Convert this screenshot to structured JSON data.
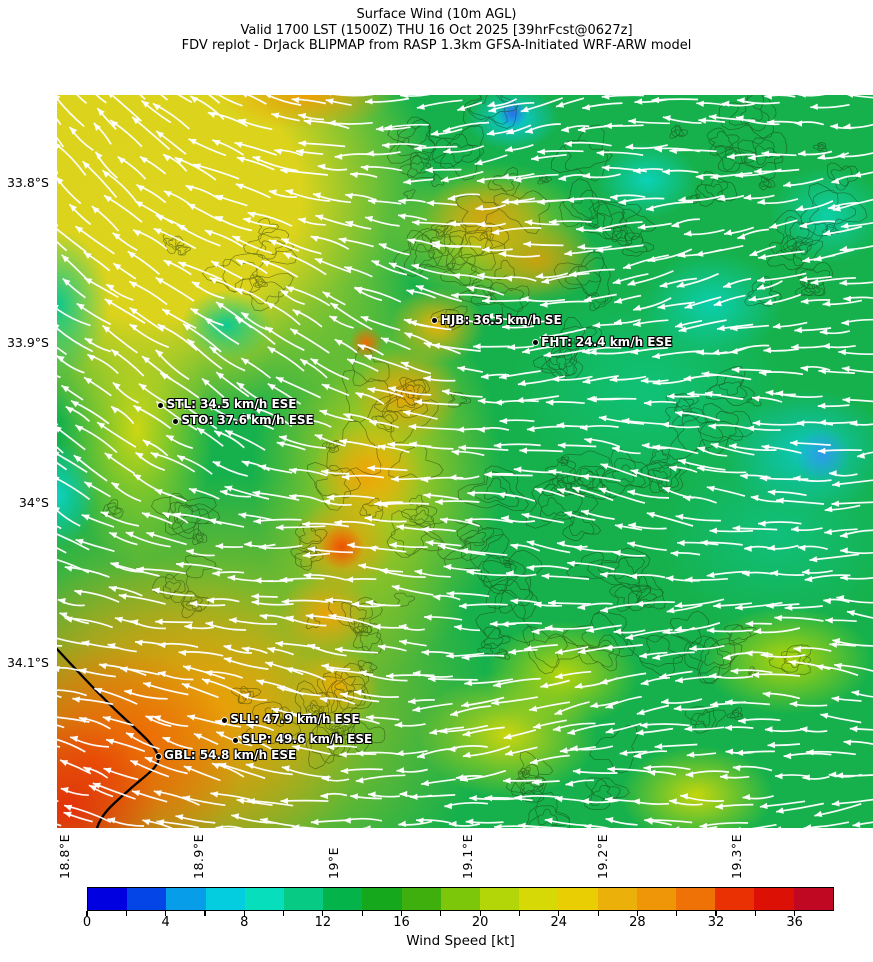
{
  "header": {
    "title": "Surface Wind (10m AGL)",
    "valid_line": "Valid 1700 LST (1500Z) THU 16 Oct 2025 [39hrFcst@0627z]",
    "source_line": "FDV replot - DrJack BLIPMAP from RASP 1.3km GFSA-Initiated WRF-ARW model"
  },
  "chart_data": {
    "type": "heatmap",
    "title": "Surface Wind (10m AGL)",
    "subtitle": "Valid 1700 LST (1500Z) THU 16 Oct 2025 [39hrFcst@0627z]",
    "source": "FDV replot - DrJack BLIPMAP from RASP 1.3km GFSA-Initiated WRF-ARW model",
    "field_description": "10m AGL wind speed shading with white surface-wind streamline arrows, terrain contour lines and a coastline in the lower-left",
    "x_axis": {
      "ticks": [
        "18.8°E",
        "18.9°E",
        "19°E",
        "19.1°E",
        "19.2°E",
        "19.3°E"
      ]
    },
    "y_axis": {
      "ticks": [
        "33.8°S",
        "33.9°S",
        "34°S",
        "34.1°S"
      ]
    },
    "colorbar": {
      "label": "Wind Speed [kt]",
      "range_kt": [
        0,
        38
      ],
      "major_ticks": [
        0,
        4,
        8,
        12,
        16,
        20,
        24,
        28,
        32,
        36
      ],
      "minor_tick_step": 2,
      "segment_step_kt": 2,
      "segment_colors": [
        "#0000e0",
        "#0345e6",
        "#089de8",
        "#04cde0",
        "#06debc",
        "#07ca84",
        "#04b44a",
        "#16a81c",
        "#3faf0e",
        "#7dc70a",
        "#b3d609",
        "#d6d905",
        "#e9ce03",
        "#ebb00a",
        "#ee9607",
        "#ee7206",
        "#e93104",
        "#dd1005",
        "#c10823"
      ]
    },
    "stations": [
      {
        "code": "HJB",
        "label": "HJB: 36.5 km/h SE",
        "speed_km_h": 36.5,
        "wind_dir": "SE",
        "x_pct": 46.3,
        "y_pct": 30.8
      },
      {
        "code": "FHT",
        "label": "FHT: 24.4 km/h ESE",
        "speed_km_h": 24.4,
        "wind_dir": "ESE",
        "x_pct": 58.6,
        "y_pct": 33.8
      },
      {
        "code": "STL",
        "label": "STL: 34.5 km/h ESE",
        "speed_km_h": 34.5,
        "wind_dir": "ESE",
        "x_pct": 12.7,
        "y_pct": 42.3
      },
      {
        "code": "STO",
        "label": "STO: 37.6 km/h ESE",
        "speed_km_h": 37.6,
        "wind_dir": "ESE",
        "x_pct": 14.5,
        "y_pct": 44.5
      },
      {
        "code": "SLL",
        "label": "SLL: 47.9 km/h ESE",
        "speed_km_h": 47.9,
        "wind_dir": "ESE",
        "x_pct": 20.5,
        "y_pct": 85.3
      },
      {
        "code": "SLP",
        "label": "SLP: 49.6 km/h ESE",
        "speed_km_h": 49.6,
        "wind_dir": "ESE",
        "x_pct": 21.9,
        "y_pct": 88.0
      },
      {
        "code": "GBL",
        "label": "GBL: 54.8 km/h ESE",
        "speed_km_h": 54.8,
        "wind_dir": "ESE",
        "x_pct": 12.4,
        "y_pct": 90.2
      }
    ]
  }
}
